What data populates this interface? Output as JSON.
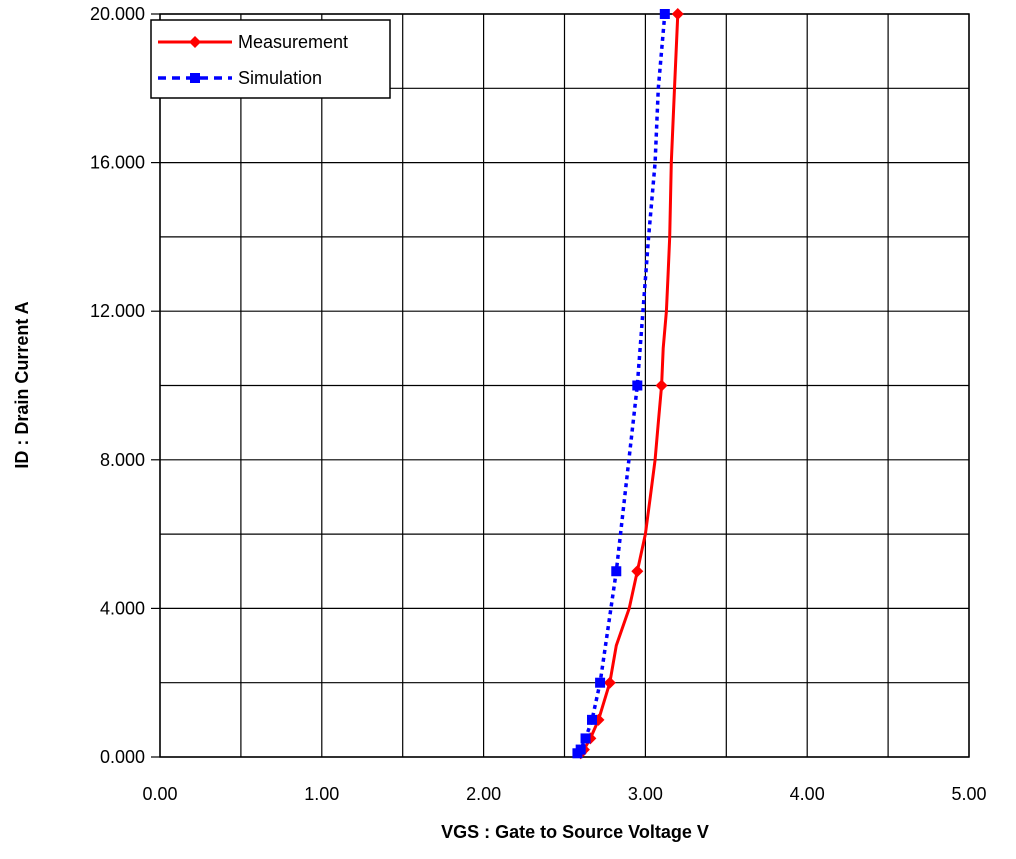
{
  "chart_data": {
    "type": "line",
    "title": "",
    "xlabel": "VGS : Gate to Source Voltage  V",
    "ylabel": "ID : Drain Current  A",
    "xlim": [
      0,
      5
    ],
    "ylim": [
      0,
      20
    ],
    "x_ticks": [
      "0.00",
      "1.00",
      "2.00",
      "3.00",
      "4.00",
      "5.00"
    ],
    "y_ticks": [
      "0.000",
      "4.000",
      "8.000",
      "12.000",
      "16.000",
      "20.000"
    ],
    "grid": true,
    "legend_position": "top-left",
    "series": [
      {
        "name": "Measurement",
        "color": "#ff0000",
        "line_style": "solid",
        "marker": "diamond",
        "points": [
          {
            "x": 2.6,
            "y": 0.1
          },
          {
            "x": 2.62,
            "y": 0.2
          },
          {
            "x": 2.66,
            "y": 0.5
          },
          {
            "x": 2.71,
            "y": 1.0
          },
          {
            "x": 2.78,
            "y": 2.0
          },
          {
            "x": 2.95,
            "y": 5.0
          },
          {
            "x": 3.1,
            "y": 10.0
          },
          {
            "x": 3.2,
            "y": 20.0
          }
        ],
        "curve": [
          {
            "x": 2.6,
            "y": 0.1
          },
          {
            "x": 2.62,
            "y": 0.2
          },
          {
            "x": 2.66,
            "y": 0.5
          },
          {
            "x": 2.71,
            "y": 1.0
          },
          {
            "x": 2.78,
            "y": 2.0
          },
          {
            "x": 2.82,
            "y": 3.0
          },
          {
            "x": 2.9,
            "y": 4.0
          },
          {
            "x": 2.95,
            "y": 5.0
          },
          {
            "x": 3.0,
            "y": 6.0
          },
          {
            "x": 3.03,
            "y": 7.0
          },
          {
            "x": 3.06,
            "y": 8.0
          },
          {
            "x": 3.08,
            "y": 9.0
          },
          {
            "x": 3.1,
            "y": 10.0
          },
          {
            "x": 3.11,
            "y": 11.0
          },
          {
            "x": 3.13,
            "y": 12.0
          },
          {
            "x": 3.14,
            "y": 13.0
          },
          {
            "x": 3.15,
            "y": 14.0
          },
          {
            "x": 3.16,
            "y": 16.0
          },
          {
            "x": 3.18,
            "y": 18.0
          },
          {
            "x": 3.2,
            "y": 20.0
          }
        ]
      },
      {
        "name": "Simulation",
        "color": "#0000ff",
        "line_style": "dotted",
        "marker": "square",
        "points": [
          {
            "x": 2.58,
            "y": 0.1
          },
          {
            "x": 2.6,
            "y": 0.2
          },
          {
            "x": 2.63,
            "y": 0.5
          },
          {
            "x": 2.67,
            "y": 1.0
          },
          {
            "x": 2.72,
            "y": 2.0
          },
          {
            "x": 2.82,
            "y": 5.0
          },
          {
            "x": 2.95,
            "y": 10.0
          },
          {
            "x": 3.12,
            "y": 20.0
          }
        ],
        "curve": [
          {
            "x": 2.58,
            "y": 0.1
          },
          {
            "x": 2.6,
            "y": 0.2
          },
          {
            "x": 2.63,
            "y": 0.5
          },
          {
            "x": 2.67,
            "y": 1.0
          },
          {
            "x": 2.72,
            "y": 2.0
          },
          {
            "x": 2.82,
            "y": 5.0
          },
          {
            "x": 2.95,
            "y": 10.0
          },
          {
            "x": 3.02,
            "y": 14.0
          },
          {
            "x": 3.06,
            "y": 16.0
          },
          {
            "x": 3.08,
            "y": 18.0
          },
          {
            "x": 3.12,
            "y": 20.0
          }
        ]
      }
    ]
  }
}
